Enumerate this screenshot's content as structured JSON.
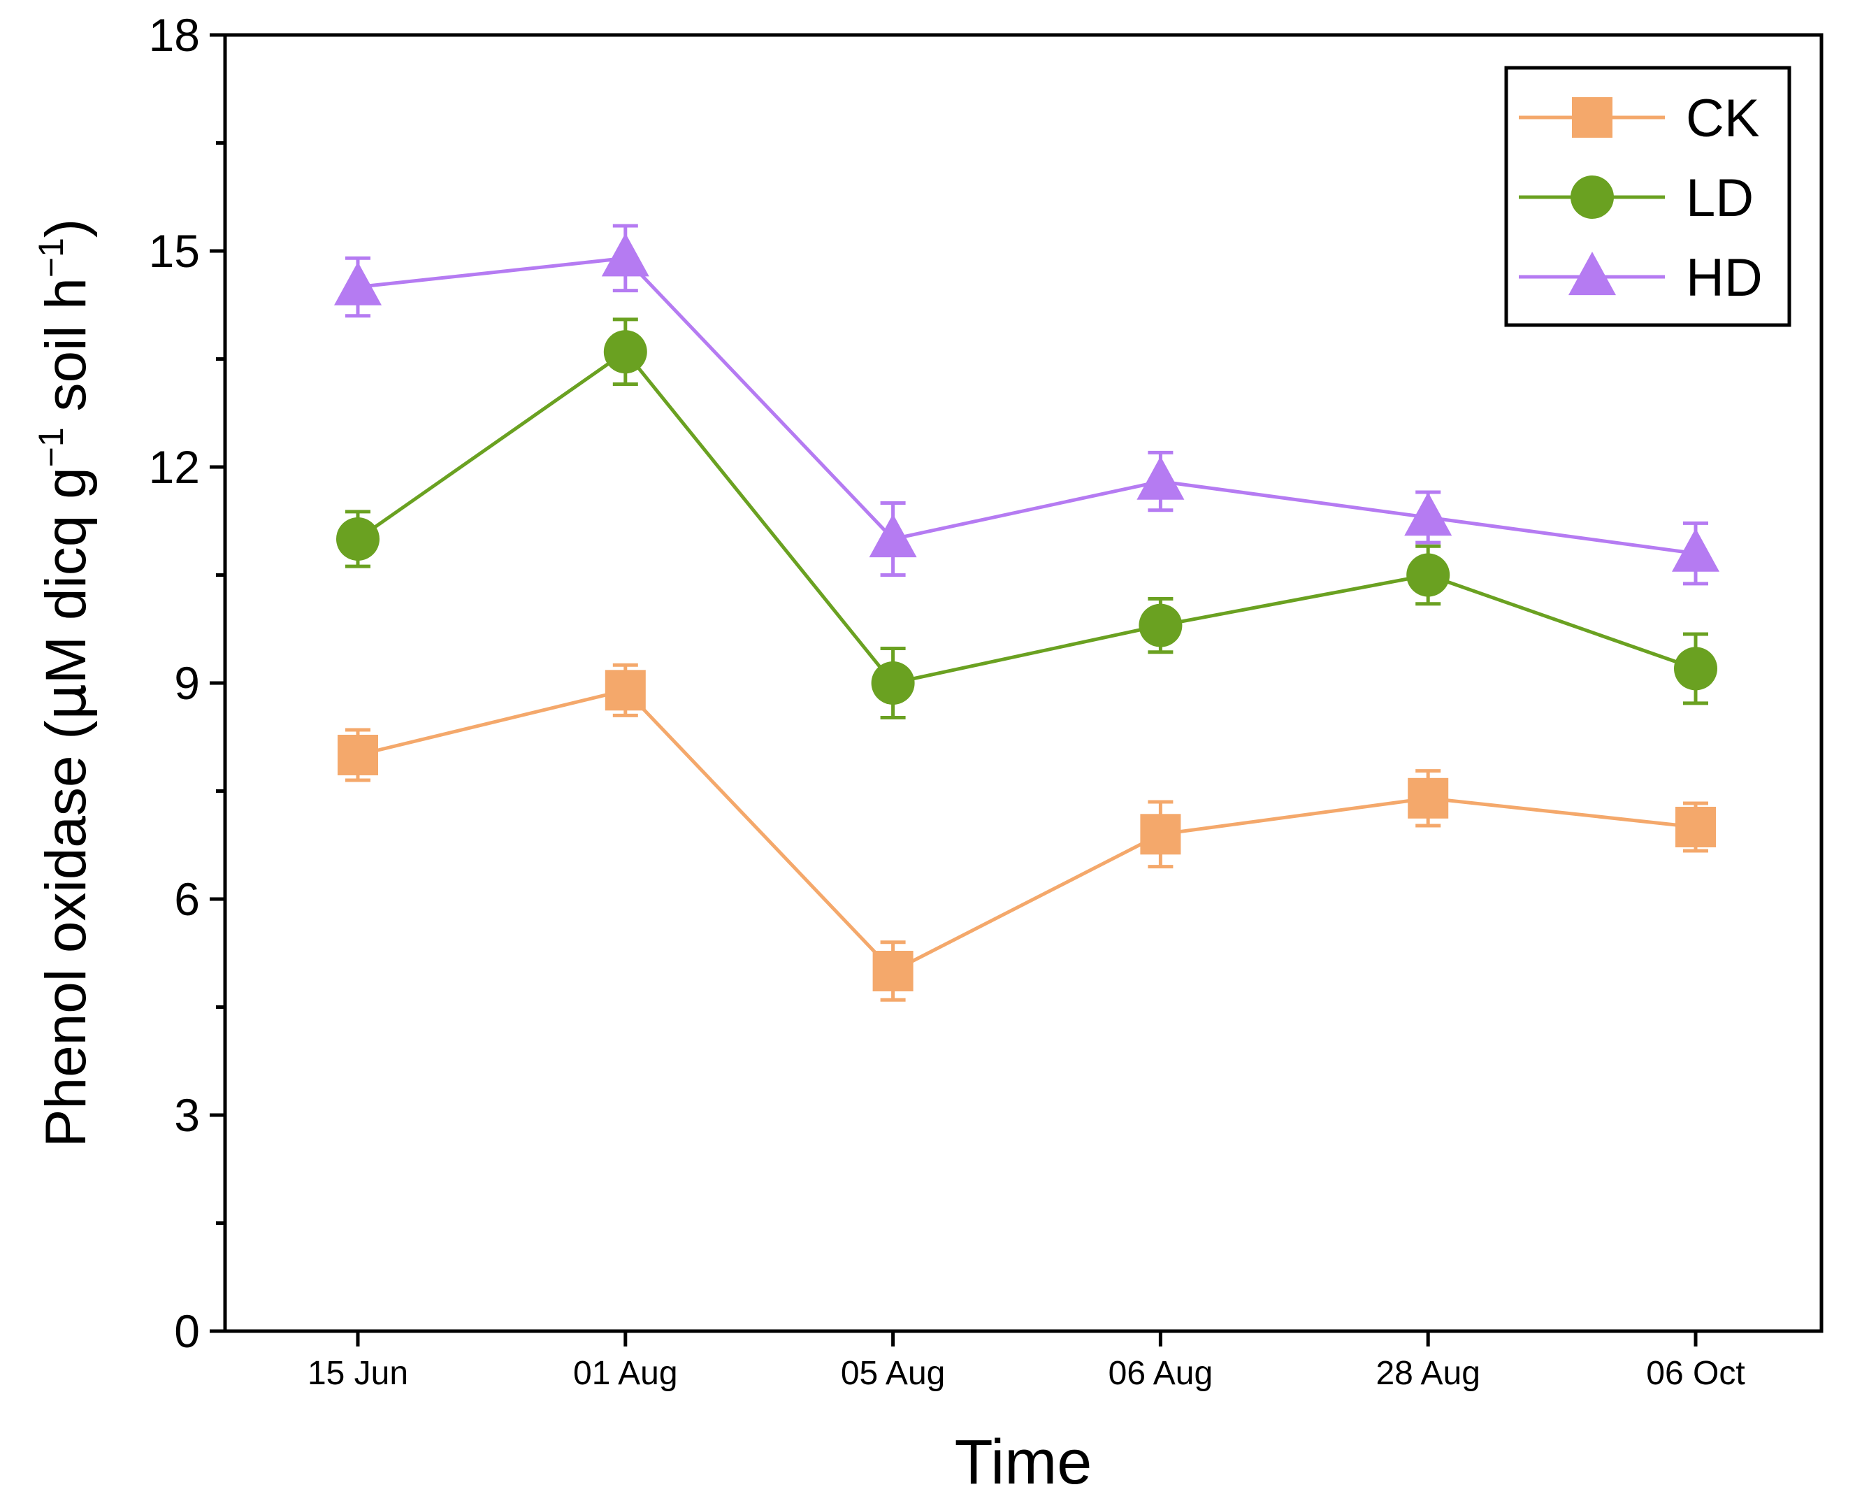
{
  "chart_data": {
    "type": "line",
    "title": "",
    "xlabel": "Time",
    "ylabel": "Phenol oxidase (μM dicq g⁻¹ soil h⁻¹)",
    "ylabel_parts": {
      "main": "Phenol oxidase (",
      "mu": "μ",
      "unit1": "M dicq g",
      "sup1": "−1",
      "unit2": " soil h",
      "sup2": "−1",
      "close": ")"
    },
    "categories": [
      "15 Jun",
      "01 Aug",
      "05 Aug",
      "06 Aug",
      "28 Aug",
      "06 Oct"
    ],
    "ylim": [
      0,
      18
    ],
    "yticks": [
      0,
      3,
      6,
      9,
      12,
      15,
      18
    ],
    "yminor_step": 1.5,
    "legend_position": "top-right",
    "grid": false,
    "series": [
      {
        "name": "CK",
        "marker": "square",
        "color": "#F4A86B",
        "values": [
          8.0,
          8.9,
          5.0,
          6.9,
          7.4,
          7.0
        ],
        "errors": [
          0.35,
          0.35,
          0.4,
          0.45,
          0.38,
          0.33
        ]
      },
      {
        "name": "LD",
        "marker": "circle",
        "color": "#6AA121",
        "values": [
          11.0,
          13.6,
          9.0,
          9.8,
          10.5,
          9.2
        ],
        "errors": [
          0.38,
          0.45,
          0.48,
          0.37,
          0.4,
          0.48
        ]
      },
      {
        "name": "HD",
        "marker": "triangle",
        "color": "#B57BF2",
        "values": [
          14.5,
          14.9,
          11.0,
          11.8,
          11.3,
          10.8
        ],
        "errors": [
          0.4,
          0.45,
          0.5,
          0.4,
          0.35,
          0.42
        ]
      }
    ]
  }
}
